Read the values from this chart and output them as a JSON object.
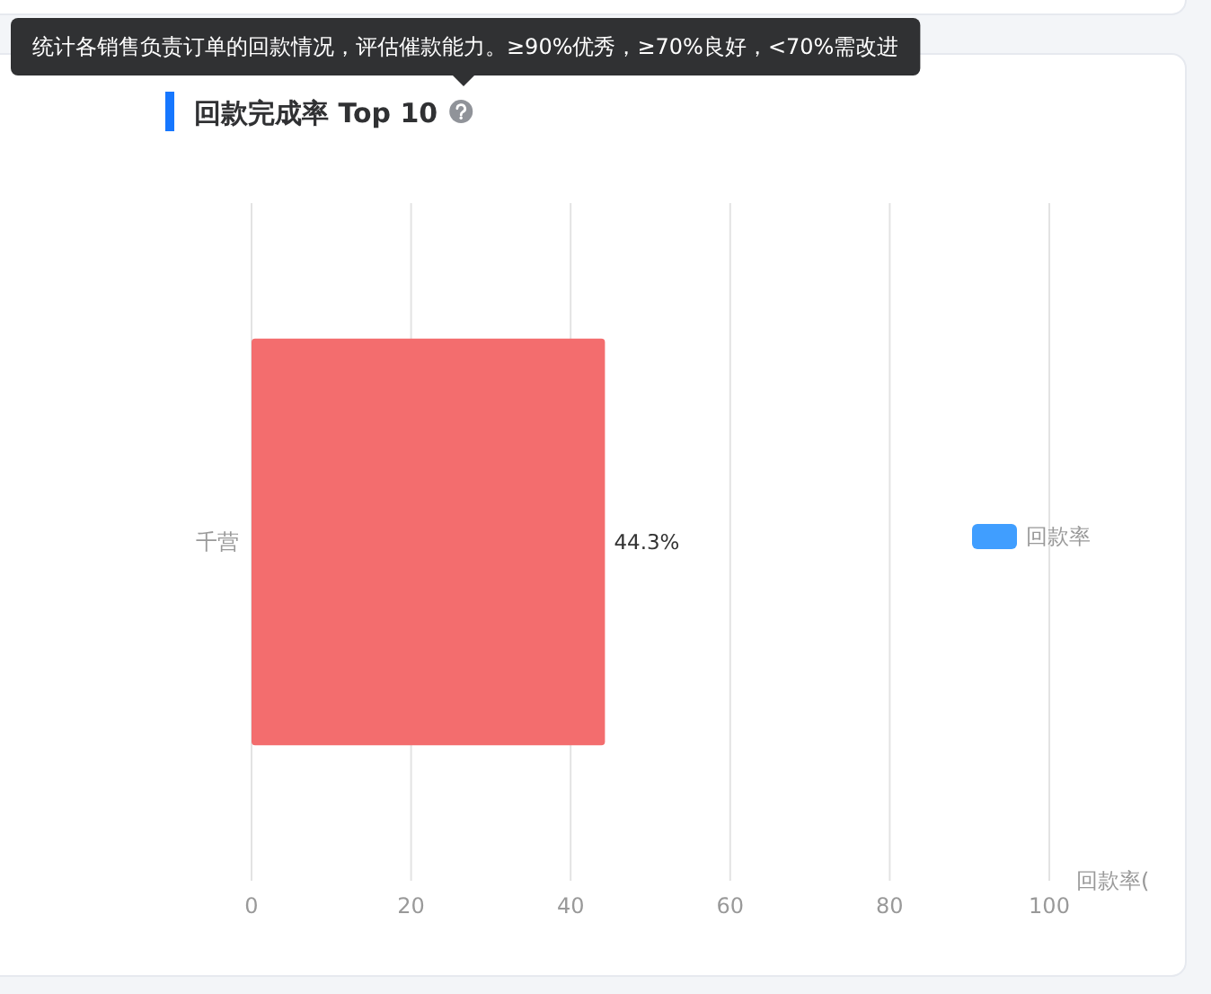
{
  "chart_data": {
    "type": "bar",
    "orientation": "horizontal",
    "title": "回款完成率 Top 10",
    "subtitle": "统计各销售负责订单的回款情况，评估催款能力。≥90%优秀，≥70%良好，<70%需改进",
    "xlabel": "回款率(",
    "categories": [
      "千营"
    ],
    "series": [
      {
        "name": "回款率",
        "color": "#409eff",
        "colors": [
          "#f36d6e"
        ],
        "values": [
          44.3
        ],
        "value_labels": [
          "44.3%"
        ]
      }
    ],
    "xlim": [
      0,
      100
    ],
    "xticks": [
      0,
      20,
      40,
      60,
      80,
      100
    ],
    "grid": "x",
    "legend": "right"
  }
}
